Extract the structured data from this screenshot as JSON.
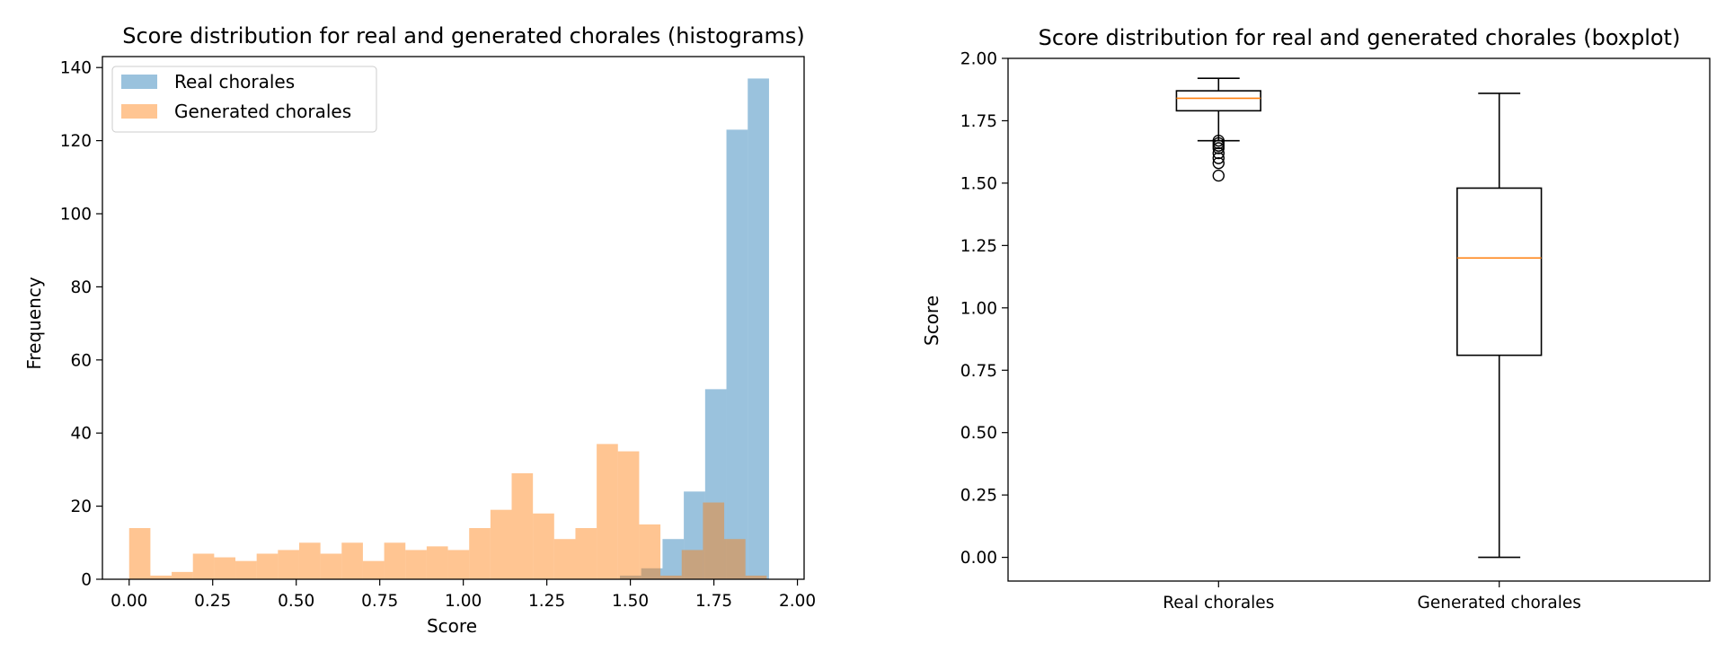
{
  "chart_data": [
    {
      "type": "histogram",
      "title": "Score distribution for real and generated chorales (histograms)",
      "xlabel": "Score",
      "ylabel": "Frequency",
      "xlim": [
        -0.08,
        2.02
      ],
      "ylim": [
        0,
        143
      ],
      "xticks": [
        "0.00",
        "0.25",
        "0.50",
        "0.75",
        "1.00",
        "1.25",
        "1.50",
        "1.75",
        "2.00"
      ],
      "yticks": [
        "0",
        "20",
        "40",
        "60",
        "80",
        "100",
        "120",
        "140"
      ],
      "legend_position": "upper-left",
      "legend": [
        "Real chorales",
        "Generated chorales"
      ],
      "series": [
        {
          "name": "Real chorales",
          "color": "#1f77b4",
          "alpha": 0.45,
          "bin_edges": [
            1.4688,
            1.5325,
            1.5963,
            1.66,
            1.7238,
            1.7875,
            1.8513,
            1.915
          ],
          "counts": [
            1,
            3,
            11,
            24,
            52,
            123,
            137
          ]
        },
        {
          "name": "Generated chorales",
          "color": "#ff7f0e",
          "alpha": 0.45,
          "bin_start": 0,
          "bin_width": 0.0636,
          "counts": [
            14,
            1,
            2,
            7,
            6,
            5,
            7,
            8,
            10,
            7,
            10,
            5,
            10,
            8,
            9,
            8,
            14,
            19,
            29,
            18,
            11,
            14,
            37,
            35,
            15,
            1,
            8,
            21,
            11,
            1
          ]
        }
      ]
    },
    {
      "type": "boxplot",
      "title": "Score distribution for real and generated chorales (boxplot)",
      "xlabel": "",
      "ylabel": "Score",
      "ylim": [
        -0.095,
        2.0
      ],
      "yticks": [
        "0.00",
        "0.25",
        "0.50",
        "0.75",
        "1.00",
        "1.25",
        "1.50",
        "1.75",
        "2.00"
      ],
      "categories": [
        "Real chorales",
        "Generated chorales"
      ],
      "median_color": "#ff7f0e",
      "boxes": [
        {
          "name": "Real chorales",
          "whislo": 1.67,
          "q1": 1.79,
          "med": 1.84,
          "q3": 1.87,
          "whishi": 1.92,
          "fliers": [
            1.53,
            1.58,
            1.6,
            1.62,
            1.64,
            1.65,
            1.66,
            1.67
          ]
        },
        {
          "name": "Generated chorales",
          "whislo": 0.0,
          "q1": 0.81,
          "med": 1.2,
          "q3": 1.48,
          "whishi": 1.86,
          "fliers": []
        }
      ]
    }
  ]
}
